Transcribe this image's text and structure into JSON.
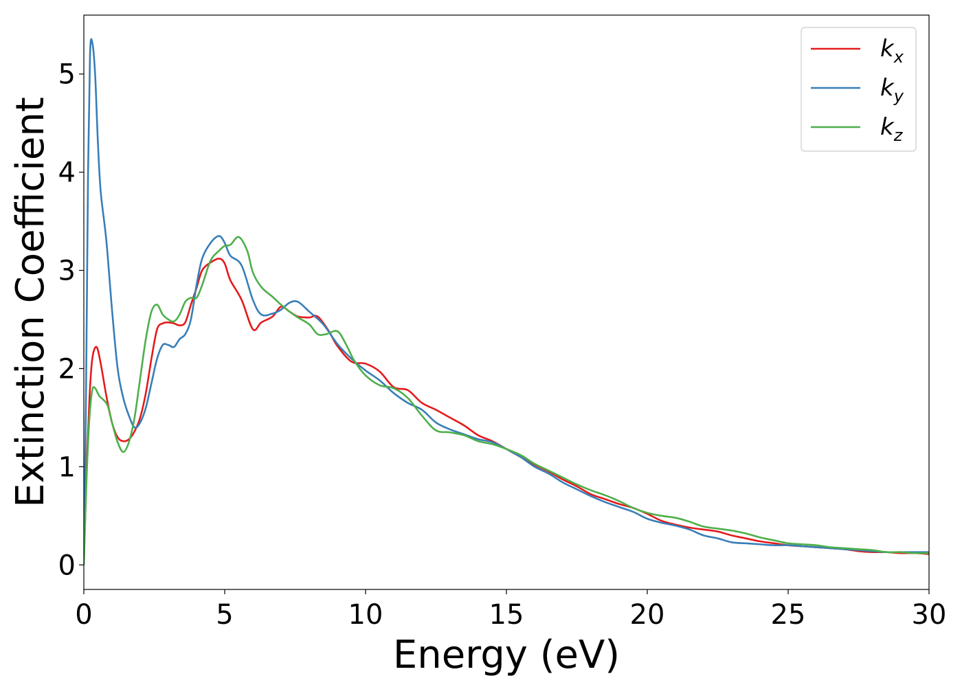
{
  "chart_data": {
    "type": "line",
    "title": "",
    "xlabel": "Energy (eV)",
    "ylabel": "Extinction Coefficient",
    "xlim": [
      0,
      30
    ],
    "ylim": [
      -0.25,
      5.6
    ],
    "xticks": [
      "0",
      "5",
      "10",
      "15",
      "20",
      "25",
      "30"
    ],
    "yticks": [
      "0",
      "1",
      "2",
      "3",
      "4",
      "5"
    ],
    "grid": false,
    "legend": {
      "position": "top-right",
      "entries": [
        {
          "base": "k",
          "sub": "x",
          "color": "#e41a1c"
        },
        {
          "base": "k",
          "sub": "y",
          "color": "#377eb8"
        },
        {
          "base": "k",
          "sub": "z",
          "color": "#4daf4a"
        }
      ]
    },
    "series": [
      {
        "color": "#e41a1c",
        "points": [
          [
            0,
            0
          ],
          [
            0.1,
            1.0
          ],
          [
            0.2,
            1.7
          ],
          [
            0.3,
            2.1
          ],
          [
            0.45,
            2.22
          ],
          [
            0.6,
            2.05
          ],
          [
            0.8,
            1.72
          ],
          [
            1.0,
            1.45
          ],
          [
            1.2,
            1.3
          ],
          [
            1.4,
            1.26
          ],
          [
            1.6,
            1.28
          ],
          [
            1.8,
            1.36
          ],
          [
            2.0,
            1.5
          ],
          [
            2.2,
            1.75
          ],
          [
            2.4,
            2.1
          ],
          [
            2.6,
            2.4
          ],
          [
            2.8,
            2.46
          ],
          [
            3.0,
            2.47
          ],
          [
            3.2,
            2.46
          ],
          [
            3.4,
            2.44
          ],
          [
            3.6,
            2.47
          ],
          [
            3.8,
            2.65
          ],
          [
            4.0,
            2.82
          ],
          [
            4.2,
            3.0
          ],
          [
            4.5,
            3.08
          ],
          [
            4.8,
            3.12
          ],
          [
            5.0,
            3.07
          ],
          [
            5.2,
            2.9
          ],
          [
            5.6,
            2.7
          ],
          [
            6.0,
            2.4
          ],
          [
            6.3,
            2.47
          ],
          [
            6.7,
            2.53
          ],
          [
            7.0,
            2.63
          ],
          [
            7.3,
            2.58
          ],
          [
            7.6,
            2.53
          ],
          [
            8.0,
            2.52
          ],
          [
            8.3,
            2.53
          ],
          [
            8.7,
            2.38
          ],
          [
            9.0,
            2.23
          ],
          [
            9.5,
            2.07
          ],
          [
            10.0,
            2.05
          ],
          [
            10.5,
            1.97
          ],
          [
            11.0,
            1.81
          ],
          [
            11.5,
            1.78
          ],
          [
            12.0,
            1.65
          ],
          [
            12.5,
            1.58
          ],
          [
            13.0,
            1.5
          ],
          [
            13.5,
            1.42
          ],
          [
            14.0,
            1.32
          ],
          [
            14.5,
            1.26
          ],
          [
            15.0,
            1.18
          ],
          [
            15.5,
            1.1
          ],
          [
            16.0,
            1.02
          ],
          [
            16.5,
            0.95
          ],
          [
            17.0,
            0.87
          ],
          [
            17.5,
            0.8
          ],
          [
            18.0,
            0.72
          ],
          [
            18.5,
            0.67
          ],
          [
            19.0,
            0.62
          ],
          [
            19.5,
            0.58
          ],
          [
            20.0,
            0.52
          ],
          [
            20.5,
            0.45
          ],
          [
            21.0,
            0.41
          ],
          [
            21.5,
            0.38
          ],
          [
            22.0,
            0.36
          ],
          [
            22.5,
            0.34
          ],
          [
            23.0,
            0.3
          ],
          [
            23.5,
            0.27
          ],
          [
            24.0,
            0.24
          ],
          [
            24.5,
            0.22
          ],
          [
            25.0,
            0.2
          ],
          [
            25.5,
            0.19
          ],
          [
            26.0,
            0.18
          ],
          [
            26.5,
            0.17
          ],
          [
            27.0,
            0.16
          ],
          [
            27.5,
            0.14
          ],
          [
            28.0,
            0.13
          ],
          [
            28.5,
            0.13
          ],
          [
            29.0,
            0.12
          ],
          [
            29.5,
            0.12
          ],
          [
            30.0,
            0.11
          ]
        ]
      },
      {
        "color": "#377eb8",
        "points": [
          [
            0,
            0
          ],
          [
            0.08,
            1.8
          ],
          [
            0.15,
            4.0
          ],
          [
            0.22,
            5.2
          ],
          [
            0.3,
            5.32
          ],
          [
            0.4,
            5.0
          ],
          [
            0.5,
            4.3
          ],
          [
            0.6,
            3.8
          ],
          [
            0.8,
            3.3
          ],
          [
            1.0,
            2.6
          ],
          [
            1.2,
            2.0
          ],
          [
            1.4,
            1.7
          ],
          [
            1.6,
            1.52
          ],
          [
            1.8,
            1.4
          ],
          [
            2.0,
            1.45
          ],
          [
            2.2,
            1.6
          ],
          [
            2.4,
            1.85
          ],
          [
            2.6,
            2.1
          ],
          [
            2.8,
            2.24
          ],
          [
            3.0,
            2.24
          ],
          [
            3.2,
            2.22
          ],
          [
            3.4,
            2.3
          ],
          [
            3.6,
            2.35
          ],
          [
            3.8,
            2.5
          ],
          [
            4.0,
            2.85
          ],
          [
            4.2,
            3.12
          ],
          [
            4.5,
            3.28
          ],
          [
            4.8,
            3.35
          ],
          [
            5.0,
            3.28
          ],
          [
            5.2,
            3.15
          ],
          [
            5.6,
            3.05
          ],
          [
            6.0,
            2.7
          ],
          [
            6.3,
            2.55
          ],
          [
            6.7,
            2.56
          ],
          [
            7.0,
            2.6
          ],
          [
            7.3,
            2.67
          ],
          [
            7.6,
            2.68
          ],
          [
            8.0,
            2.58
          ],
          [
            8.5,
            2.45
          ],
          [
            9.0,
            2.25
          ],
          [
            9.5,
            2.1
          ],
          [
            10.0,
            1.98
          ],
          [
            10.5,
            1.88
          ],
          [
            11.0,
            1.75
          ],
          [
            11.5,
            1.65
          ],
          [
            12.0,
            1.58
          ],
          [
            12.5,
            1.45
          ],
          [
            13.0,
            1.38
          ],
          [
            13.5,
            1.33
          ],
          [
            14.0,
            1.28
          ],
          [
            14.5,
            1.25
          ],
          [
            15.0,
            1.18
          ],
          [
            15.5,
            1.1
          ],
          [
            16.0,
            1.0
          ],
          [
            16.5,
            0.93
          ],
          [
            17.0,
            0.84
          ],
          [
            17.5,
            0.77
          ],
          [
            18.0,
            0.7
          ],
          [
            18.5,
            0.64
          ],
          [
            19.0,
            0.59
          ],
          [
            19.5,
            0.54
          ],
          [
            20.0,
            0.47
          ],
          [
            20.5,
            0.43
          ],
          [
            21.0,
            0.4
          ],
          [
            21.5,
            0.36
          ],
          [
            22.0,
            0.3
          ],
          [
            22.5,
            0.27
          ],
          [
            23.0,
            0.23
          ],
          [
            23.5,
            0.22
          ],
          [
            24.0,
            0.21
          ],
          [
            24.5,
            0.2
          ],
          [
            25.0,
            0.2
          ],
          [
            25.5,
            0.19
          ],
          [
            26.0,
            0.18
          ],
          [
            26.5,
            0.17
          ],
          [
            27.0,
            0.16
          ],
          [
            27.5,
            0.15
          ],
          [
            28.0,
            0.14
          ],
          [
            28.5,
            0.13
          ],
          [
            29.0,
            0.13
          ],
          [
            29.5,
            0.13
          ],
          [
            30.0,
            0.13
          ]
        ]
      },
      {
        "color": "#4daf4a",
        "points": [
          [
            0,
            0
          ],
          [
            0.1,
            0.9
          ],
          [
            0.2,
            1.5
          ],
          [
            0.3,
            1.78
          ],
          [
            0.4,
            1.8
          ],
          [
            0.55,
            1.72
          ],
          [
            0.7,
            1.68
          ],
          [
            0.85,
            1.62
          ],
          [
            1.0,
            1.45
          ],
          [
            1.2,
            1.25
          ],
          [
            1.4,
            1.15
          ],
          [
            1.6,
            1.25
          ],
          [
            1.8,
            1.5
          ],
          [
            2.0,
            1.9
          ],
          [
            2.2,
            2.3
          ],
          [
            2.4,
            2.58
          ],
          [
            2.6,
            2.65
          ],
          [
            2.8,
            2.55
          ],
          [
            3.0,
            2.5
          ],
          [
            3.2,
            2.48
          ],
          [
            3.4,
            2.55
          ],
          [
            3.6,
            2.68
          ],
          [
            3.8,
            2.72
          ],
          [
            4.0,
            2.72
          ],
          [
            4.2,
            2.85
          ],
          [
            4.5,
            3.1
          ],
          [
            4.8,
            3.2
          ],
          [
            5.0,
            3.25
          ],
          [
            5.2,
            3.26
          ],
          [
            5.5,
            3.34
          ],
          [
            5.8,
            3.2
          ],
          [
            6.0,
            2.98
          ],
          [
            6.3,
            2.83
          ],
          [
            6.7,
            2.73
          ],
          [
            7.0,
            2.65
          ],
          [
            7.3,
            2.58
          ],
          [
            7.6,
            2.52
          ],
          [
            8.0,
            2.45
          ],
          [
            8.3,
            2.35
          ],
          [
            8.6,
            2.35
          ],
          [
            9.0,
            2.38
          ],
          [
            9.3,
            2.25
          ],
          [
            9.6,
            2.08
          ],
          [
            10.0,
            1.93
          ],
          [
            10.5,
            1.83
          ],
          [
            11.0,
            1.8
          ],
          [
            11.5,
            1.7
          ],
          [
            12.0,
            1.52
          ],
          [
            12.5,
            1.37
          ],
          [
            13.0,
            1.35
          ],
          [
            13.5,
            1.32
          ],
          [
            14.0,
            1.26
          ],
          [
            14.5,
            1.23
          ],
          [
            15.0,
            1.18
          ],
          [
            15.5,
            1.12
          ],
          [
            16.0,
            1.03
          ],
          [
            16.5,
            0.96
          ],
          [
            17.0,
            0.89
          ],
          [
            17.5,
            0.82
          ],
          [
            18.0,
            0.76
          ],
          [
            18.5,
            0.71
          ],
          [
            19.0,
            0.65
          ],
          [
            19.5,
            0.58
          ],
          [
            20.0,
            0.53
          ],
          [
            20.5,
            0.5
          ],
          [
            21.0,
            0.48
          ],
          [
            21.5,
            0.44
          ],
          [
            22.0,
            0.39
          ],
          [
            22.5,
            0.37
          ],
          [
            23.0,
            0.35
          ],
          [
            23.5,
            0.32
          ],
          [
            24.0,
            0.28
          ],
          [
            24.5,
            0.25
          ],
          [
            25.0,
            0.22
          ],
          [
            25.5,
            0.21
          ],
          [
            26.0,
            0.2
          ],
          [
            26.5,
            0.18
          ],
          [
            27.0,
            0.17
          ],
          [
            27.5,
            0.16
          ],
          [
            28.0,
            0.15
          ],
          [
            28.5,
            0.13
          ],
          [
            29.0,
            0.13
          ],
          [
            29.5,
            0.12
          ],
          [
            30.0,
            0.12
          ]
        ]
      }
    ]
  }
}
